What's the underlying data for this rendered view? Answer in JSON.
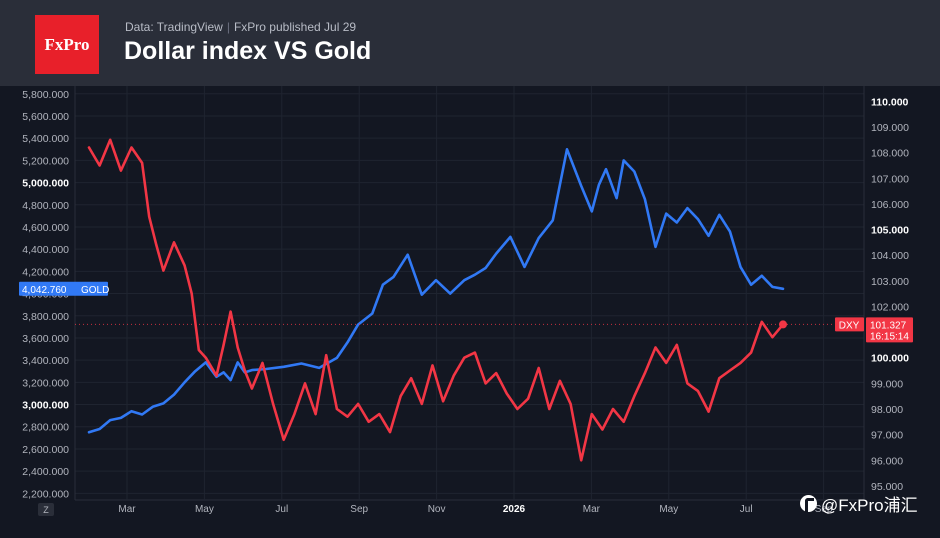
{
  "header": {
    "logo": "FxPro",
    "source": "Data: TradingView",
    "separator": "|",
    "published": "FxPro published Jul 29",
    "title": "Dollar index VS Gold"
  },
  "watermark": "@FxPro浦汇",
  "chart_data": {
    "type": "line",
    "title": "Dollar index VS Gold",
    "grid": true,
    "x_axis": {
      "corner_label": "Z",
      "ticks": [
        "Mar",
        "May",
        "Jul",
        "Sep",
        "Nov",
        "2026",
        "Mar",
        "May",
        "Jul",
        "Sep"
      ],
      "range_months": [
        0,
        19.8
      ]
    },
    "y_left": {
      "ticks": [
        "2,200.000",
        "2,400.000",
        "2,600.000",
        "2,800.000",
        "3,000.000",
        "3,200.000",
        "3,400.000",
        "3,600.000",
        "3,800.000",
        "4,000.000",
        "4,200.000",
        "4,400.000",
        "4,600.000",
        "4,800.000",
        "5,000.000",
        "5,200.000",
        "5,400.000",
        "5,600.000",
        "5,800.000"
      ],
      "bold_ticks": [
        "3,000.000",
        "5,000.000"
      ],
      "range": [
        2140,
        5870
      ]
    },
    "y_right": {
      "ticks": [
        "95.000",
        "96.000",
        "97.000",
        "98.000",
        "99.000",
        "100.000",
        "101.000",
        "102.000",
        "103.000",
        "104.000",
        "105.000",
        "106.000",
        "107.000",
        "108.000",
        "109.000",
        "110.000"
      ],
      "bold_ticks": [
        "100.000",
        "105.000",
        "110.000"
      ],
      "range": [
        94.45,
        110.6
      ]
    },
    "series": [
      {
        "name": "GOLD",
        "axis": "left",
        "color": "#3179f5",
        "last_value": "4,042.760",
        "x": [
          0,
          0.3,
          0.6,
          0.9,
          1.2,
          1.5,
          1.8,
          2.1,
          2.4,
          2.7,
          3.0,
          3.3,
          3.6,
          3.8,
          4.0,
          4.2,
          4.4,
          4.6,
          5.0,
          5.5,
          6.0,
          6.5,
          7.0,
          7.3,
          7.6,
          8.0,
          8.3,
          8.6,
          9.0,
          9.4,
          9.8,
          10.2,
          10.6,
          10.9,
          11.2,
          11.5,
          11.9,
          12.3,
          12.7,
          13.1,
          13.5,
          13.9,
          14.2,
          14.4,
          14.6,
          14.9,
          15.1,
          15.4,
          15.7,
          16.0,
          16.3,
          16.6,
          16.9,
          17.2,
          17.5,
          17.8,
          18.1,
          18.4,
          18.7,
          19.0,
          19.3,
          19.6
        ],
        "values": [
          2750,
          2780,
          2860,
          2880,
          2940,
          2910,
          2980,
          3010,
          3090,
          3200,
          3300,
          3380,
          3250,
          3290,
          3220,
          3380,
          3290,
          3310,
          3320,
          3340,
          3370,
          3330,
          3420,
          3560,
          3720,
          3820,
          4080,
          4150,
          4350,
          3990,
          4120,
          4000,
          4120,
          4170,
          4230,
          4360,
          4510,
          4240,
          4500,
          4660,
          5300,
          4970,
          4740,
          4980,
          5120,
          4860,
          5200,
          5100,
          4850,
          4420,
          4720,
          4640,
          4770,
          4670,
          4520,
          4710,
          4560,
          4240,
          4080,
          4160,
          4060,
          4043
        ]
      },
      {
        "name": "DXY",
        "axis": "right",
        "color": "#f23645",
        "last_value": "101.327",
        "countdown": "16:15:14",
        "x": [
          0,
          0.3,
          0.6,
          0.9,
          1.2,
          1.5,
          1.7,
          1.9,
          2.1,
          2.4,
          2.7,
          2.9,
          3.1,
          3.3,
          3.6,
          3.8,
          4.0,
          4.2,
          4.4,
          4.6,
          4.9,
          5.2,
          5.5,
          5.8,
          6.1,
          6.4,
          6.7,
          7.0,
          7.3,
          7.6,
          7.9,
          8.2,
          8.5,
          8.8,
          9.1,
          9.4,
          9.7,
          10.0,
          10.3,
          10.6,
          10.9,
          11.2,
          11.5,
          11.8,
          12.1,
          12.4,
          12.7,
          13.0,
          13.3,
          13.6,
          13.9,
          14.2,
          14.5,
          14.8,
          15.1,
          15.4,
          15.7,
          16.0,
          16.3,
          16.6,
          16.9,
          17.2,
          17.5,
          17.8,
          18.1,
          18.4,
          18.7,
          19.0,
          19.3,
          19.6
        ],
        "values": [
          108.2,
          107.5,
          108.5,
          107.3,
          108.2,
          107.6,
          105.5,
          104.4,
          103.4,
          104.5,
          103.6,
          102.5,
          100.3,
          100.0,
          99.3,
          100.5,
          101.8,
          100.4,
          99.5,
          98.8,
          99.8,
          98.2,
          96.8,
          97.8,
          99.0,
          97.8,
          100.1,
          98.0,
          97.7,
          98.2,
          97.5,
          97.8,
          97.1,
          98.5,
          99.2,
          98.2,
          99.7,
          98.3,
          99.3,
          100.0,
          100.2,
          99.0,
          99.4,
          98.6,
          98.0,
          98.4,
          99.6,
          98.0,
          99.1,
          98.2,
          96.0,
          97.8,
          97.2,
          98.0,
          97.5,
          98.5,
          99.4,
          100.4,
          99.8,
          100.5,
          99.0,
          98.7,
          97.9,
          99.2,
          99.5,
          99.8,
          100.2,
          101.4,
          100.8,
          101.3
        ]
      }
    ]
  }
}
